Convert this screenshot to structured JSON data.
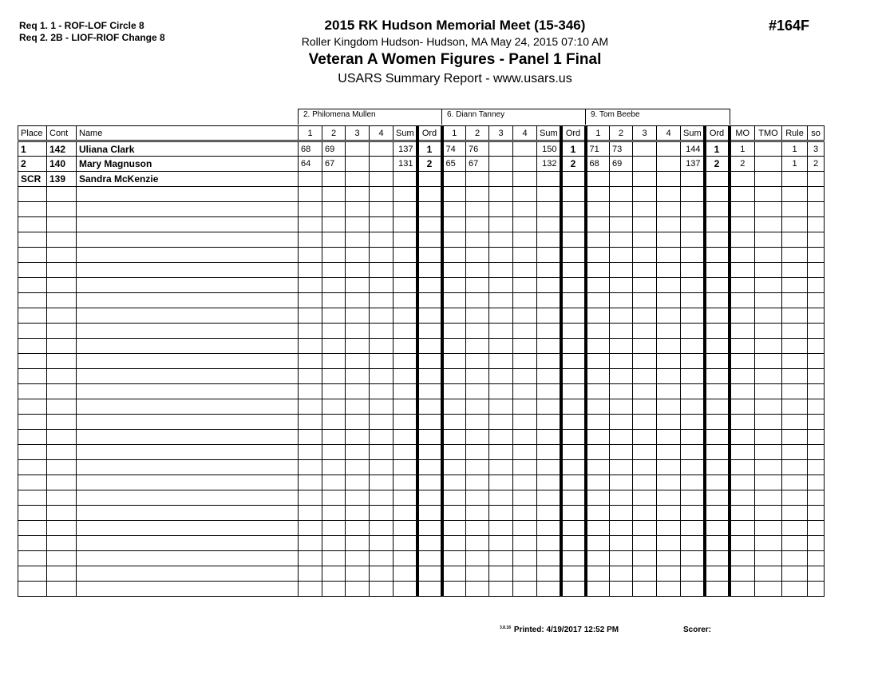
{
  "requirements": [
    "Req  1.  1 - ROF-LOF Circle 8",
    "Req  2.  2B - LIOF-RIOF Change 8"
  ],
  "header": {
    "title": "2015 RK Hudson Memorial Meet (15-346)",
    "location": "Roller Kingdom Hudson- Hudson, MA  May 24, 2015  07:10 AM",
    "event": "Veteran A Women Figures - Panel 1 Final",
    "report": "USARS Summary Report - www.usars.us",
    "event_number": "#164F"
  },
  "judges": [
    "2.  Philomena Mullen",
    "6.  Diann Tanney",
    "9.  Tom Beebe"
  ],
  "columns": {
    "place": "Place",
    "cont": "Cont",
    "name": "Name",
    "scores": [
      "1",
      "2",
      "3",
      "4",
      "Sum",
      "Ord"
    ],
    "mo": "MO",
    "tmo": "TMO",
    "rule": "Rule",
    "so": "so"
  },
  "rows": [
    {
      "place": "1",
      "cont": "142",
      "name": "Uliana Clark",
      "judges": [
        [
          "68",
          "69",
          "",
          "",
          "137",
          "1"
        ],
        [
          "74",
          "76",
          "",
          "",
          "150",
          "1"
        ],
        [
          "71",
          "73",
          "",
          "",
          "144",
          "1"
        ]
      ],
      "mo": "1",
      "tmo": "",
      "rule": "1",
      "so": "3"
    },
    {
      "place": "2",
      "cont": "140",
      "name": "Mary Magnuson",
      "judges": [
        [
          "64",
          "67",
          "",
          "",
          "131",
          "2"
        ],
        [
          "65",
          "67",
          "",
          "",
          "132",
          "2"
        ],
        [
          "68",
          "69",
          "",
          "",
          "137",
          "2"
        ]
      ],
      "mo": "2",
      "tmo": "",
      "rule": "1",
      "so": "2"
    },
    {
      "place": "SCR",
      "cont": "139",
      "name": "Sandra McKenzie",
      "judges": [
        [
          "",
          "",
          "",
          "",
          "",
          ""
        ],
        [
          "",
          "",
          "",
          "",
          "",
          ""
        ],
        [
          "",
          "",
          "",
          "",
          "",
          ""
        ]
      ],
      "mo": "",
      "tmo": "",
      "rule": "",
      "so": ""
    }
  ],
  "footer": {
    "version": "3.8.18",
    "printed": "Printed:  4/19/2017 12:52 PM",
    "scorer": "Scorer:"
  }
}
